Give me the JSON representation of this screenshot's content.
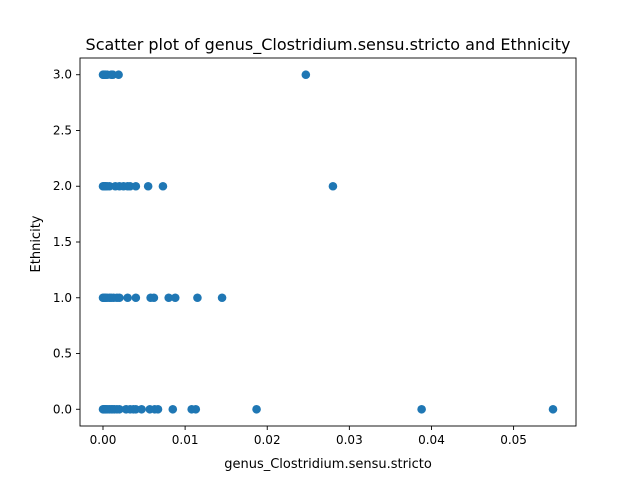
{
  "chart_data": {
    "type": "scatter",
    "title": "Scatter plot of genus_Clostridium.sensu.stricto and Ethnicity",
    "xlabel": "genus_Clostridium.sensu.stricto",
    "ylabel": "Ethnicity",
    "xlim": [
      -0.0028,
      0.0576
    ],
    "ylim": [
      -0.15,
      3.15
    ],
    "xticks": [
      0.0,
      0.01,
      0.02,
      0.03,
      0.04,
      0.05
    ],
    "xtick_labels": [
      "0.00",
      "0.01",
      "0.02",
      "0.03",
      "0.04",
      "0.05"
    ],
    "yticks": [
      0.0,
      0.5,
      1.0,
      1.5,
      2.0,
      2.5,
      3.0
    ],
    "ytick_labels": [
      "0.0",
      "0.5",
      "1.0",
      "1.5",
      "2.0",
      "2.5",
      "3.0"
    ],
    "grid": false,
    "marker_color": "#1f77b4",
    "points": [
      [
        0.0,
        3
      ],
      [
        0.0001,
        3
      ],
      [
        0.0002,
        3
      ],
      [
        0.0003,
        3
      ],
      [
        0.0005,
        3
      ],
      [
        0.001,
        3
      ],
      [
        0.0012,
        3
      ],
      [
        0.0019,
        3
      ],
      [
        0.0247,
        3
      ],
      [
        0.0,
        2
      ],
      [
        0.0001,
        2
      ],
      [
        0.0002,
        2
      ],
      [
        0.0003,
        2
      ],
      [
        0.0005,
        2
      ],
      [
        0.0008,
        2
      ],
      [
        0.0015,
        2
      ],
      [
        0.002,
        2
      ],
      [
        0.0025,
        2
      ],
      [
        0.003,
        2
      ],
      [
        0.0033,
        2
      ],
      [
        0.004,
        2
      ],
      [
        0.0055,
        2
      ],
      [
        0.0073,
        2
      ],
      [
        0.028,
        2
      ],
      [
        0.0,
        1
      ],
      [
        0.0001,
        1
      ],
      [
        0.0002,
        1
      ],
      [
        0.0003,
        1
      ],
      [
        0.0005,
        1
      ],
      [
        0.0008,
        1
      ],
      [
        0.001,
        1
      ],
      [
        0.0013,
        1
      ],
      [
        0.0017,
        1
      ],
      [
        0.002,
        1
      ],
      [
        0.003,
        1
      ],
      [
        0.004,
        1
      ],
      [
        0.0058,
        1
      ],
      [
        0.0062,
        1
      ],
      [
        0.008,
        1
      ],
      [
        0.0088,
        1
      ],
      [
        0.0115,
        1
      ],
      [
        0.0145,
        1
      ],
      [
        0.0,
        0
      ],
      [
        0.0001,
        0
      ],
      [
        0.0002,
        0
      ],
      [
        0.0003,
        0
      ],
      [
        0.0004,
        0
      ],
      [
        0.0006,
        0
      ],
      [
        0.0008,
        0
      ],
      [
        0.001,
        0
      ],
      [
        0.0012,
        0
      ],
      [
        0.0014,
        0
      ],
      [
        0.0017,
        0
      ],
      [
        0.002,
        0
      ],
      [
        0.0028,
        0
      ],
      [
        0.0033,
        0
      ],
      [
        0.0037,
        0
      ],
      [
        0.004,
        0
      ],
      [
        0.0047,
        0
      ],
      [
        0.0057,
        0
      ],
      [
        0.0063,
        0
      ],
      [
        0.0067,
        0
      ],
      [
        0.0085,
        0
      ],
      [
        0.0108,
        0
      ],
      [
        0.0113,
        0
      ],
      [
        0.0187,
        0
      ],
      [
        0.0388,
        0
      ],
      [
        0.0548,
        0
      ]
    ]
  }
}
